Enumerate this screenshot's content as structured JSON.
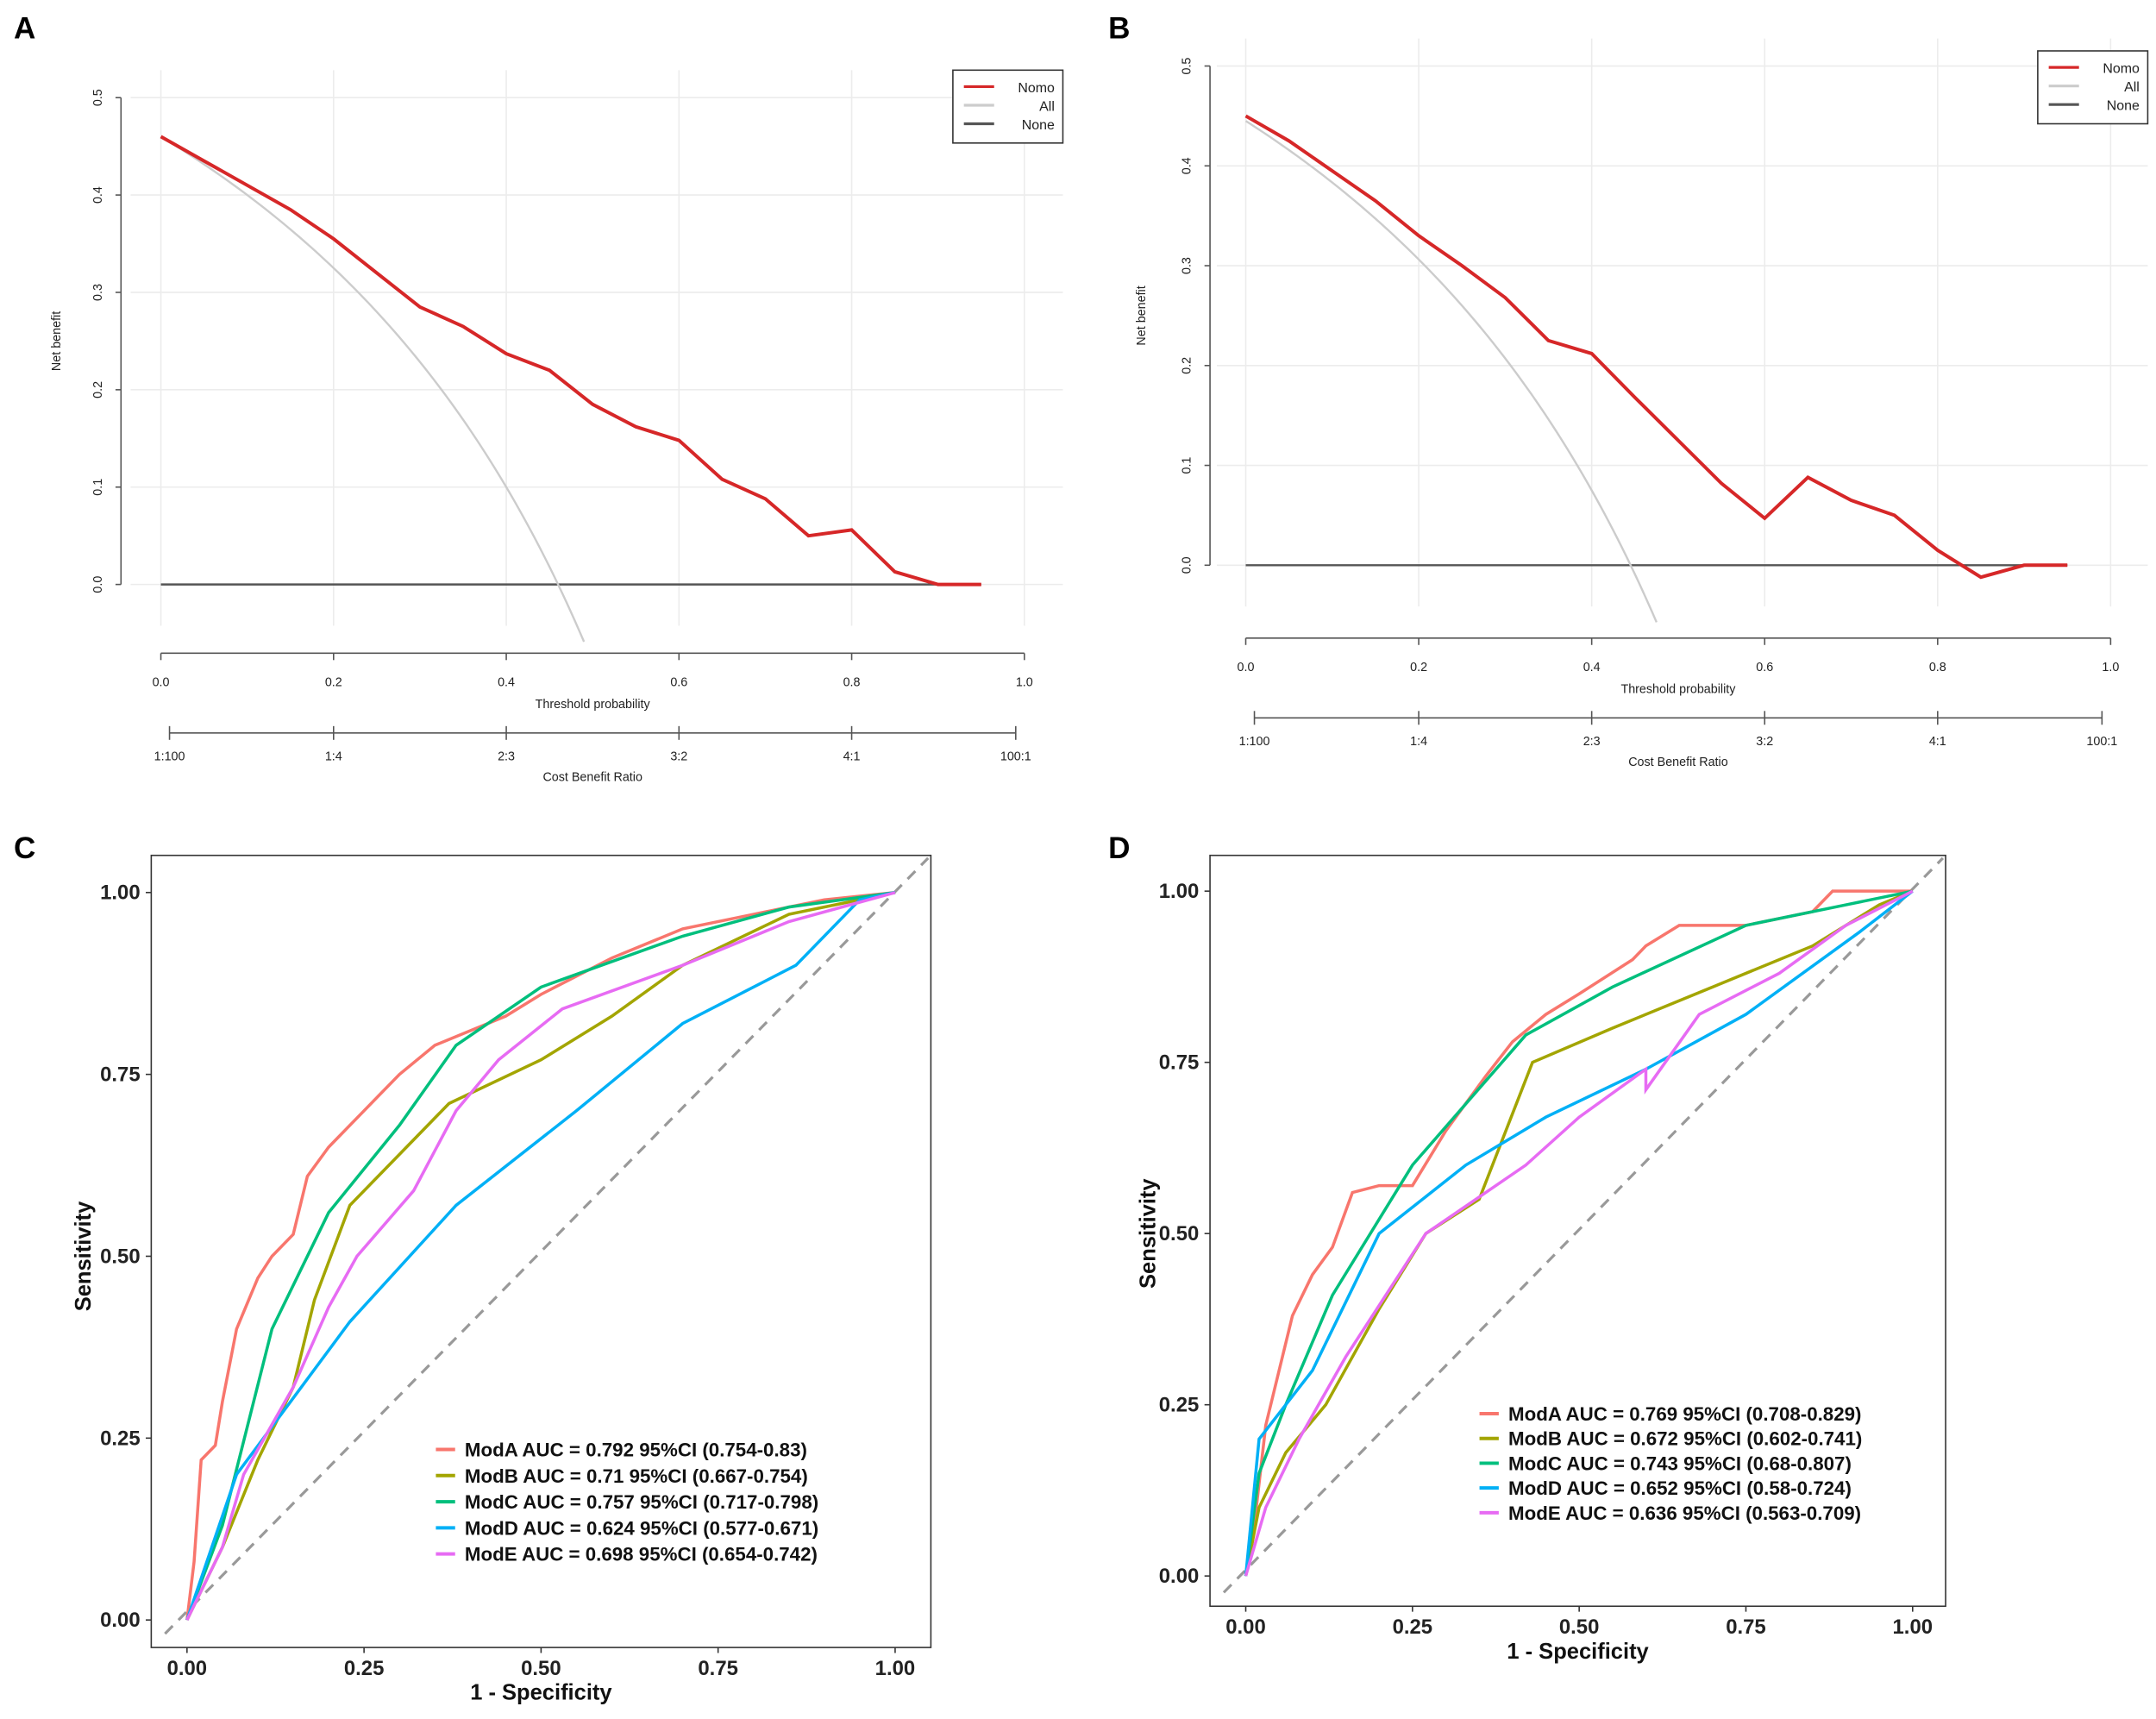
{
  "chart_data": [
    {
      "panel": "A",
      "type": "line",
      "xlabel": "Threshold probability",
      "ylabel": "Net benefit",
      "xlim": [
        0,
        1
      ],
      "ylim": [
        0,
        0.5
      ],
      "xticks": [
        "0.0",
        "0.2",
        "0.4",
        "0.6",
        "0.8",
        "1.0"
      ],
      "yticks": [
        "0.0",
        "0.1",
        "0.2",
        "0.3",
        "0.4",
        "0.5"
      ],
      "x2label": "Cost Benefit Ratio",
      "x2ticks": [
        "1:100",
        "1:4",
        "2:3",
        "3:2",
        "4:1",
        "100:1"
      ],
      "legend": [
        "Nomo",
        "All",
        "None"
      ],
      "legend_position": "top-right",
      "colors": [
        "#d62728",
        "#cccccc",
        "#555555"
      ],
      "all_prevalence": 0.46,
      "series": [
        {
          "name": "Nomo",
          "x": [
            0,
            0.05,
            0.1,
            0.15,
            0.2,
            0.25,
            0.3,
            0.35,
            0.4,
            0.45,
            0.5,
            0.55,
            0.6,
            0.65,
            0.7,
            0.75,
            0.8,
            0.85,
            0.9,
            0.95
          ],
          "y": [
            0.46,
            0.435,
            0.41,
            0.385,
            0.355,
            0.32,
            0.285,
            0.265,
            0.237,
            0.22,
            0.185,
            0.162,
            0.148,
            0.108,
            0.088,
            0.05,
            0.056,
            0.013,
            0,
            0
          ]
        }
      ]
    },
    {
      "panel": "B",
      "type": "line",
      "xlabel": "Threshold probability",
      "ylabel": "Net benefit",
      "xlim": [
        0,
        1
      ],
      "ylim": [
        0,
        0.5
      ],
      "xticks": [
        "0.0",
        "0.2",
        "0.4",
        "0.6",
        "0.8",
        "1.0"
      ],
      "yticks": [
        "0.0",
        "0.1",
        "0.2",
        "0.3",
        "0.4",
        "0.5"
      ],
      "x2label": "Cost Benefit Ratio",
      "x2ticks": [
        "1:100",
        "1:4",
        "2:3",
        "3:2",
        "4:1",
        "100:1"
      ],
      "legend": [
        "Nomo",
        "All",
        "None"
      ],
      "legend_position": "top-right",
      "colors": [
        "#d62728",
        "#cccccc",
        "#555555"
      ],
      "all_prevalence": 0.445,
      "series": [
        {
          "name": "Nomo",
          "x": [
            0,
            0.05,
            0.1,
            0.15,
            0.2,
            0.25,
            0.3,
            0.35,
            0.4,
            0.45,
            0.5,
            0.55,
            0.6,
            0.65,
            0.7,
            0.75,
            0.8,
            0.85,
            0.9,
            0.95
          ],
          "y": [
            0.45,
            0.425,
            0.395,
            0.365,
            0.33,
            0.3,
            0.268,
            0.225,
            0.212,
            0.168,
            0.125,
            0.082,
            0.047,
            0.088,
            0.065,
            0.05,
            0.015,
            -0.012,
            0,
            0
          ]
        }
      ]
    },
    {
      "panel": "C",
      "type": "line",
      "xlabel": "1 - Specificity",
      "ylabel": "Sensitivity",
      "xlim": [
        0,
        1
      ],
      "ylim": [
        0,
        1
      ],
      "xticks": [
        "0.00",
        "0.25",
        "0.50",
        "0.75",
        "1.00"
      ],
      "yticks": [
        "0.00",
        "0.25",
        "0.50",
        "0.75",
        "1.00"
      ],
      "legend_position": "bottom-right",
      "series": [
        {
          "name": "ModA AUC = 0.792 95%CI (0.754-0.83)",
          "color": "#f8766d",
          "x": [
            0,
            0.01,
            0.02,
            0.04,
            0.05,
            0.07,
            0.1,
            0.12,
            0.15,
            0.17,
            0.2,
            0.25,
            0.3,
            0.35,
            0.4,
            0.45,
            0.5,
            0.6,
            0.7,
            0.8,
            0.9,
            1
          ],
          "y": [
            0,
            0.08,
            0.22,
            0.24,
            0.3,
            0.4,
            0.47,
            0.5,
            0.53,
            0.61,
            0.65,
            0.7,
            0.75,
            0.79,
            0.81,
            0.83,
            0.86,
            0.91,
            0.95,
            0.97,
            0.99,
            1
          ]
        },
        {
          "name": "ModB AUC = 0.71 95%CI (0.667-0.754)",
          "color": "#a3a500",
          "x": [
            0,
            0.05,
            0.1,
            0.15,
            0.18,
            0.23,
            0.37,
            0.5,
            0.6,
            0.7,
            0.85,
            1
          ],
          "y": [
            0,
            0.1,
            0.22,
            0.32,
            0.44,
            0.57,
            0.71,
            0.77,
            0.83,
            0.9,
            0.97,
            1
          ]
        },
        {
          "name": "ModC AUC = 0.757 95%CI (0.717-0.798)",
          "color": "#00bf7d",
          "x": [
            0,
            0.05,
            0.12,
            0.2,
            0.3,
            0.38,
            0.5,
            0.7,
            0.85,
            1
          ],
          "y": [
            0,
            0.13,
            0.4,
            0.56,
            0.68,
            0.79,
            0.87,
            0.94,
            0.98,
            1
          ]
        },
        {
          "name": "ModD AUC = 0.624 95%CI (0.577-0.671)",
          "color": "#00b0f6",
          "x": [
            0,
            0.07,
            0.23,
            0.38,
            0.55,
            0.7,
            0.86,
            0.95,
            1
          ],
          "y": [
            0,
            0.2,
            0.41,
            0.57,
            0.7,
            0.82,
            0.9,
            0.99,
            1
          ]
        },
        {
          "name": "ModE AUC = 0.698 95%CI (0.654-0.742)",
          "color": "#e76bf3",
          "x": [
            0,
            0.05,
            0.08,
            0.15,
            0.2,
            0.24,
            0.32,
            0.38,
            0.44,
            0.53,
            0.7,
            0.85,
            1
          ],
          "y": [
            0,
            0.1,
            0.2,
            0.32,
            0.43,
            0.5,
            0.59,
            0.7,
            0.77,
            0.84,
            0.9,
            0.96,
            1
          ]
        }
      ]
    },
    {
      "panel": "D",
      "type": "line",
      "xlabel": "1 - Specificity",
      "ylabel": "Sensitivity",
      "xlim": [
        0,
        1
      ],
      "ylim": [
        0,
        1
      ],
      "xticks": [
        "0.00",
        "0.25",
        "0.50",
        "0.75",
        "1.00"
      ],
      "yticks": [
        "0.00",
        "0.25",
        "0.50",
        "0.75",
        "1.00"
      ],
      "legend_position": "bottom-right",
      "series": [
        {
          "name": "ModA AUC = 0.769 95%CI (0.708-0.829)",
          "color": "#f8766d",
          "x": [
            0,
            0.01,
            0.03,
            0.05,
            0.07,
            0.1,
            0.13,
            0.16,
            0.2,
            0.25,
            0.3,
            0.36,
            0.4,
            0.45,
            0.5,
            0.58,
            0.6,
            0.65,
            0.75,
            0.85,
            0.88,
            1
          ],
          "y": [
            0,
            0.05,
            0.22,
            0.3,
            0.38,
            0.44,
            0.48,
            0.56,
            0.57,
            0.57,
            0.65,
            0.73,
            0.78,
            0.82,
            0.85,
            0.9,
            0.92,
            0.95,
            0.95,
            0.97,
            1,
            1
          ]
        },
        {
          "name": "ModB AUC = 0.672 95%CI (0.602-0.741)",
          "color": "#a3a500",
          "x": [
            0,
            0.02,
            0.06,
            0.12,
            0.2,
            0.27,
            0.35,
            0.43,
            0.55,
            0.7,
            0.85,
            0.95,
            1
          ],
          "y": [
            0,
            0.1,
            0.18,
            0.25,
            0.39,
            0.5,
            0.55,
            0.75,
            0.8,
            0.86,
            0.92,
            0.98,
            1
          ]
        },
        {
          "name": "ModC AUC = 0.743 95%CI (0.68-0.807)",
          "color": "#00bf7d",
          "x": [
            0,
            0.02,
            0.06,
            0.13,
            0.25,
            0.42,
            0.55,
            0.75,
            0.9,
            1
          ],
          "y": [
            0,
            0.15,
            0.25,
            0.41,
            0.6,
            0.79,
            0.86,
            0.95,
            0.98,
            1
          ]
        },
        {
          "name": "ModD AUC = 0.652 95%CI (0.58-0.724)",
          "color": "#00b0f6",
          "x": [
            0,
            0.02,
            0.1,
            0.2,
            0.33,
            0.45,
            0.6,
            0.75,
            0.92,
            1
          ],
          "y": [
            0,
            0.2,
            0.3,
            0.5,
            0.6,
            0.67,
            0.74,
            0.82,
            0.94,
            1
          ]
        },
        {
          "name": "ModE AUC = 0.636 95%CI (0.563-0.709)",
          "color": "#e76bf3",
          "x": [
            0,
            0.03,
            0.08,
            0.15,
            0.27,
            0.42,
            0.5,
            0.6,
            0.6,
            0.68,
            0.8,
            0.9,
            1
          ],
          "y": [
            0,
            0.1,
            0.2,
            0.32,
            0.5,
            0.6,
            0.67,
            0.74,
            0.71,
            0.82,
            0.88,
            0.95,
            1
          ]
        }
      ]
    }
  ]
}
